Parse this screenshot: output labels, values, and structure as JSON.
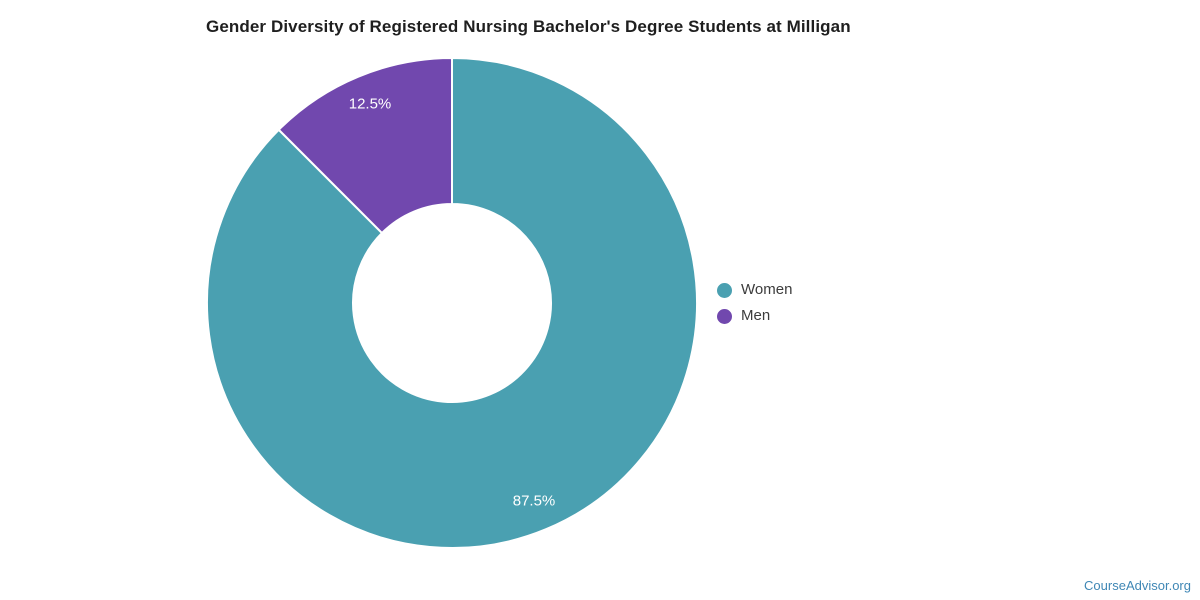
{
  "chart_data": {
    "type": "pie",
    "donut": true,
    "title": "Gender Diversity of Registered Nursing Bachelor's Degree Students at Milligan",
    "series": [
      {
        "name": "Women",
        "value": 87.5,
        "label": "87.5%",
        "color": "#4aa0b1"
      },
      {
        "name": "Men",
        "value": 12.5,
        "label": "12.5%",
        "color": "#7148ae"
      }
    ],
    "start_angle_deg": 0,
    "direction": "clockwise",
    "inner_radius_ratio": 0.404,
    "slice_label_color": "#ffffff",
    "slice_border_color": "#ffffff",
    "legend_position": "right",
    "background": "#ffffff"
  },
  "legend": {
    "items": [
      {
        "label": "Women",
        "color": "#4aa0b1"
      },
      {
        "label": "Men",
        "color": "#7148ae"
      }
    ]
  },
  "footer": {
    "brand": "CourseAdvisor.org",
    "color": "#3f87b5"
  }
}
